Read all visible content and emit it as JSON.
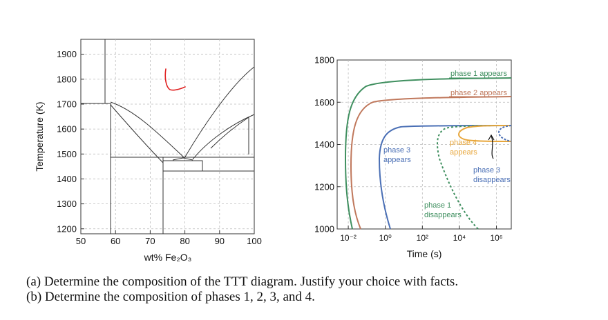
{
  "phase_diagram": {
    "ylabel": "Temperature (K)",
    "xlabel": "wt% Fe₂O₃",
    "xticks": [
      50,
      60,
      70,
      80,
      90,
      100
    ],
    "yticks": [
      1200,
      1300,
      1400,
      1500,
      1600,
      1700,
      1800,
      1900
    ],
    "xlim": [
      50,
      100
    ],
    "ylim": [
      1180,
      1960
    ],
    "annotation": "handwritten red mark"
  },
  "ttt_diagram": {
    "xlabel": "Time (s)",
    "xtick_labels": [
      "10⁻²",
      "10⁰",
      "10²",
      "10⁴",
      "10⁶"
    ],
    "xtick_exponents": [
      -2,
      0,
      2,
      4,
      6
    ],
    "xlim_log10": [
      -2.6,
      6.8
    ],
    "yticks": [
      1000,
      1200,
      1400,
      1600,
      1800
    ],
    "ylim": [
      1000,
      1800
    ],
    "curve_labels": {
      "phase1_appears": "phase 1 appears",
      "phase2_appears": "phase 2 appears",
      "phase3_appears_1": "phase 3",
      "phase3_appears_2": "appears",
      "phase4_appears_1": "phase 4",
      "phase4_appears_2": "appears",
      "phase3_disappears_1": "phase 3",
      "phase3_disappears_2": "disappears",
      "phase1_disappears_1": "phase 1",
      "phase1_disappears_2": "disappears"
    },
    "colors": {
      "phase1": "#3f8f5f",
      "phase2": "#c0785c",
      "phase3": "#4a6fb5",
      "phase4": "#e8a73c"
    }
  },
  "questions": {
    "a": "(a) Determine the composition of the TTT diagram. Justify your choice with facts.",
    "b": "(b) Determine the composition of phases 1, 2, 3, and 4."
  }
}
